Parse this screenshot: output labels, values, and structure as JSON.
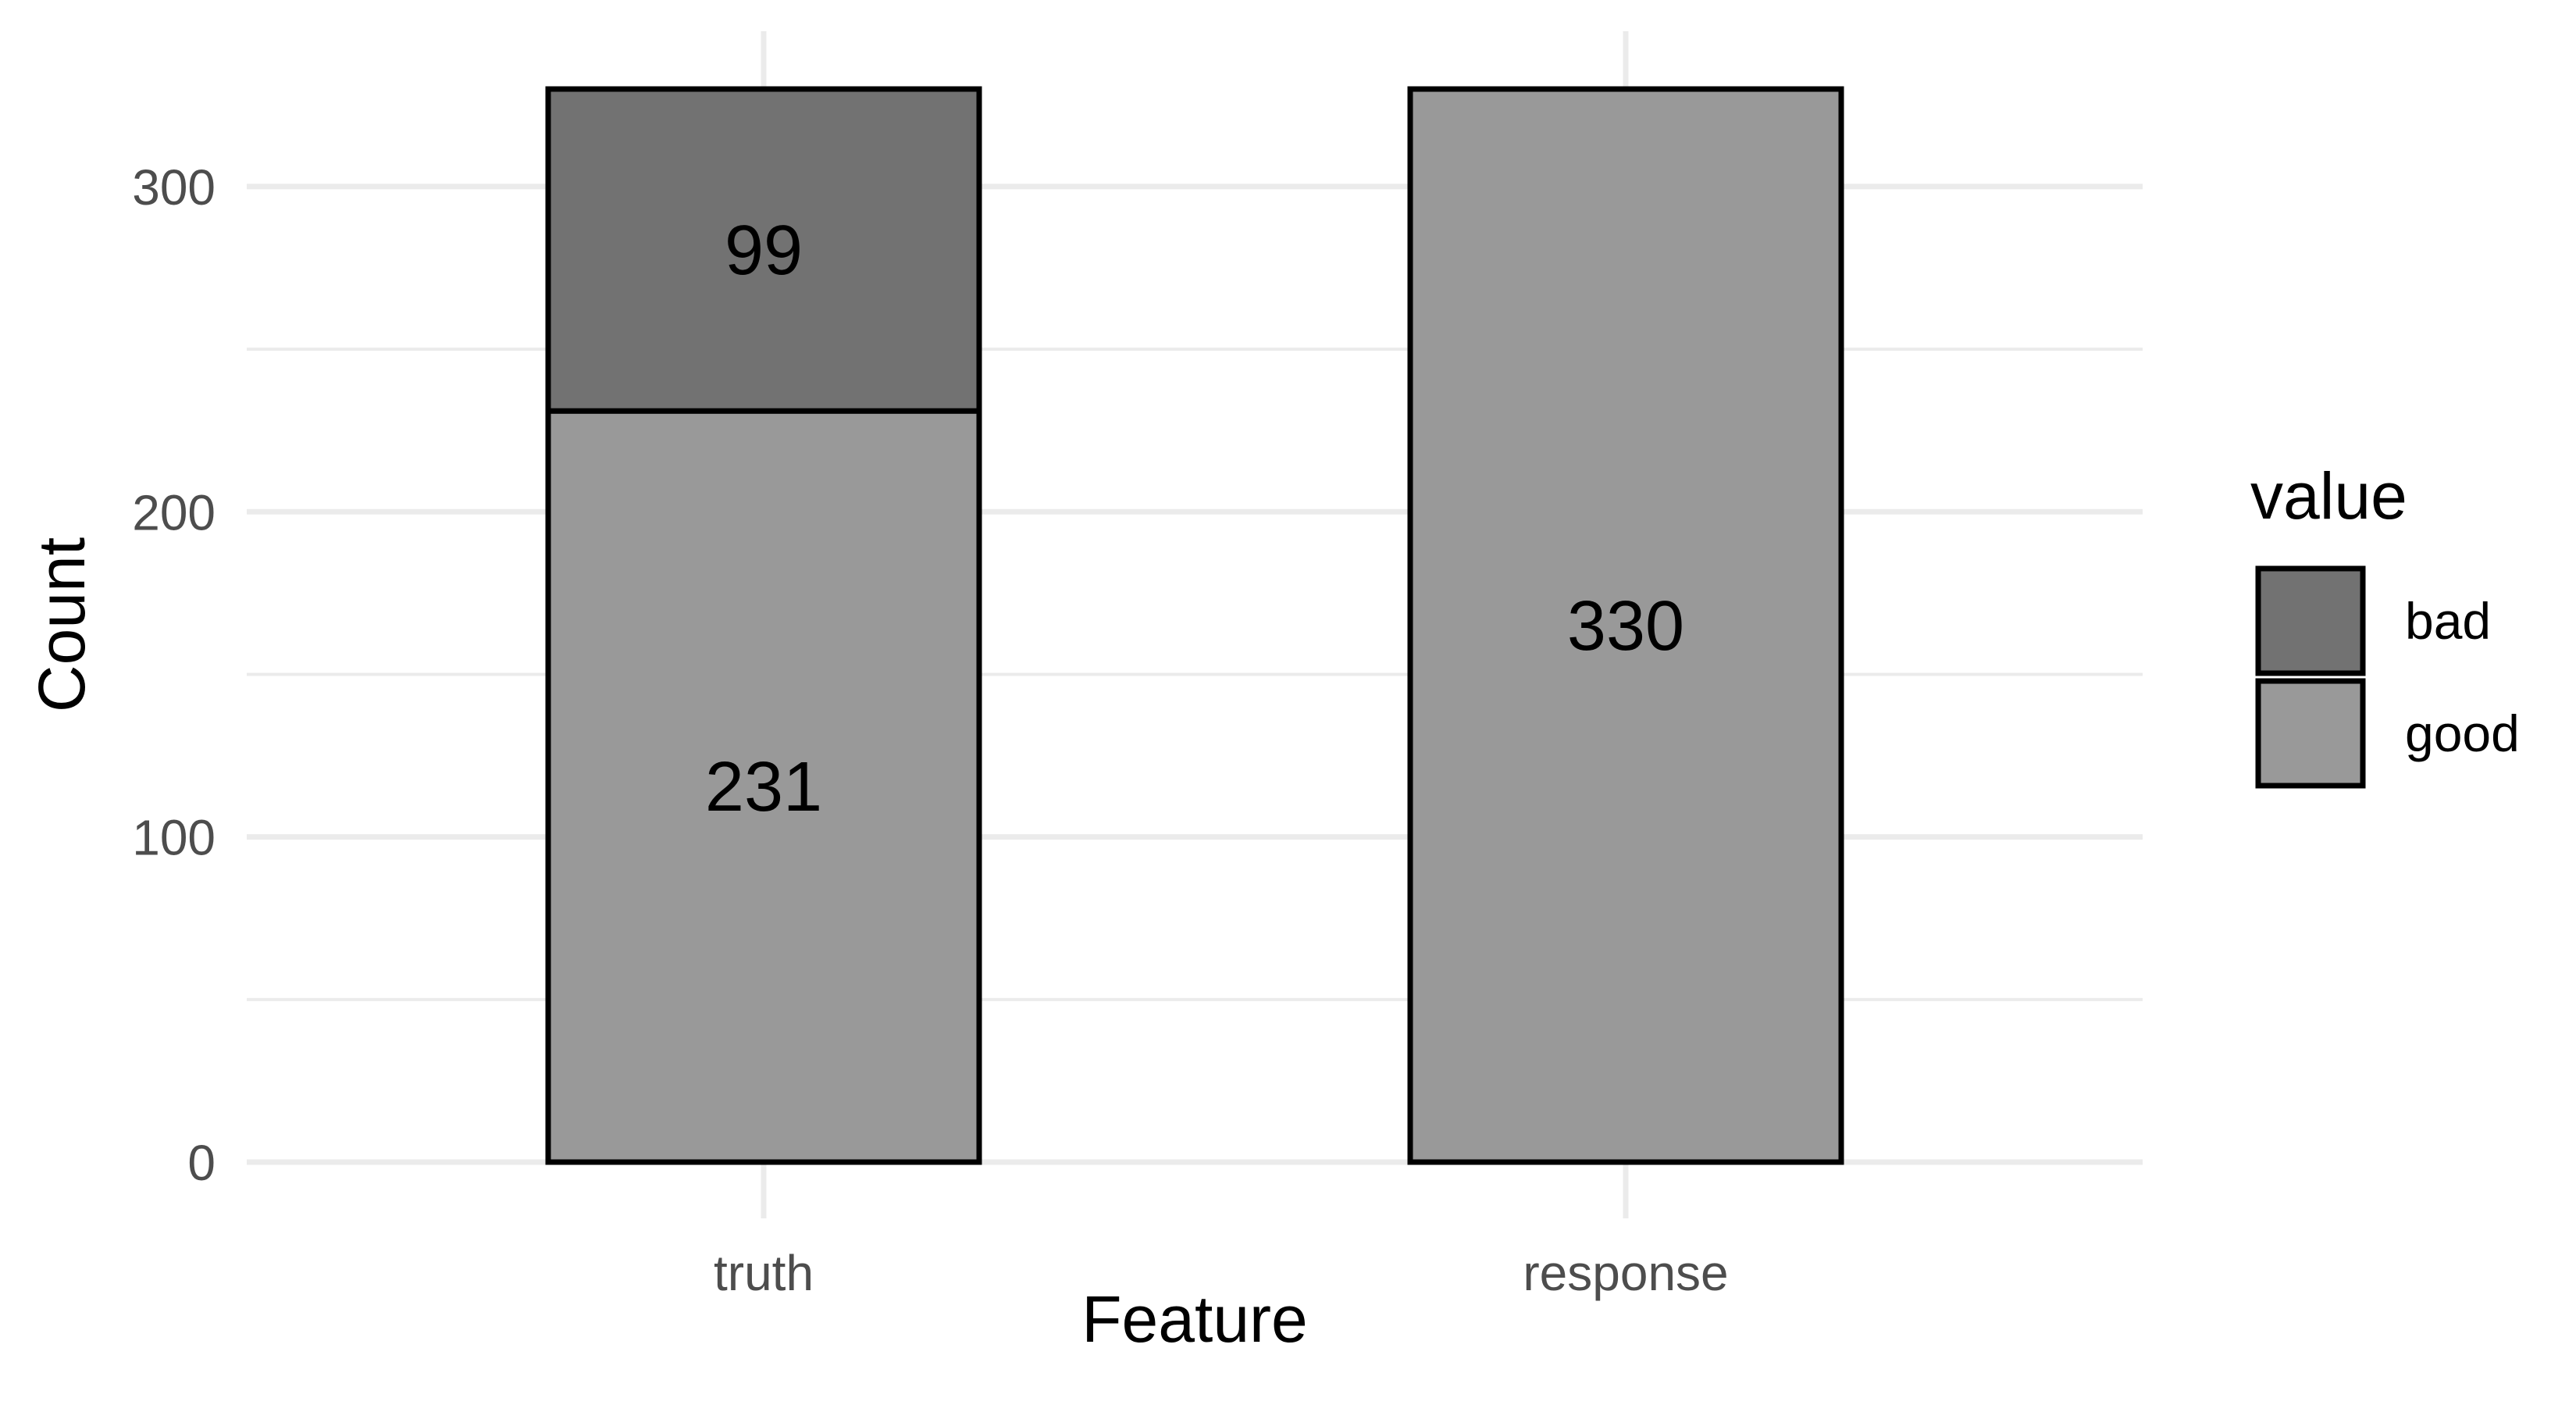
{
  "chart_data": {
    "type": "bar",
    "stacked": true,
    "categories": [
      "truth",
      "response"
    ],
    "series": [
      {
        "name": "good",
        "values": [
          231,
          330
        ],
        "color": "#999999"
      },
      {
        "name": "bad",
        "values": [
          99,
          0
        ],
        "color": "#727272"
      }
    ],
    "data_labels": [
      {
        "category": "truth",
        "series": "bad",
        "text": "99"
      },
      {
        "category": "truth",
        "series": "good",
        "text": "231"
      },
      {
        "category": "response",
        "series": "good",
        "text": "330"
      }
    ],
    "title": "",
    "xlabel": "Feature",
    "ylabel": "Count",
    "ylim": [
      0,
      330
    ],
    "yticks": [
      0,
      100,
      200,
      300
    ],
    "grid": true,
    "legend": {
      "title": "value",
      "position": "right",
      "entries": [
        {
          "label": "bad",
          "color": "#727272"
        },
        {
          "label": "good",
          "color": "#999999"
        }
      ]
    }
  }
}
